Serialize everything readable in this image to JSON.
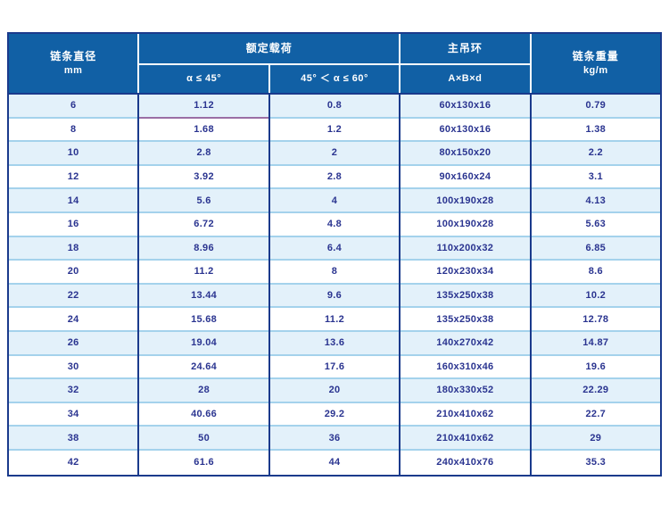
{
  "table": {
    "header": {
      "diameter_title": "链条直径",
      "diameter_unit": "mm",
      "rated_load": "额定载荷",
      "sub_alpha_le_45": "α ≤ 45°",
      "sub_45_lt_alpha_le_60": "45° ＜ α ≤ 60°",
      "main_ring": "主吊环",
      "sub_abd": "A×B×d",
      "weight_title": "链条重量",
      "weight_unit": "kg/m"
    },
    "rows": [
      [
        "6",
        "1.12",
        "0.8",
        "60x130x16",
        "0.79"
      ],
      [
        "8",
        "1.68",
        "1.2",
        "60x130x16",
        "1.38"
      ],
      [
        "10",
        "2.8",
        "2",
        "80x150x20",
        "2.2"
      ],
      [
        "12",
        "3.92",
        "2.8",
        "90x160x24",
        "3.1"
      ],
      [
        "14",
        "5.6",
        "4",
        "100x190x28",
        "4.13"
      ],
      [
        "16",
        "6.72",
        "4.8",
        "100x190x28",
        "5.63"
      ],
      [
        "18",
        "8.96",
        "6.4",
        "110x200x32",
        "6.85"
      ],
      [
        "20",
        "11.2",
        "8",
        "120x230x34",
        "8.6"
      ],
      [
        "22",
        "13.44",
        "9.6",
        "135x250x38",
        "10.2"
      ],
      [
        "24",
        "15.68",
        "11.2",
        "135x250x38",
        "12.78"
      ],
      [
        "26",
        "19.04",
        "13.6",
        "140x270x42",
        "14.87"
      ],
      [
        "30",
        "24.64",
        "17.6",
        "160x310x46",
        "19.6"
      ],
      [
        "32",
        "28",
        "20",
        "180x330x52",
        "22.29"
      ],
      [
        "34",
        "40.66",
        "29.2",
        "210x410x62",
        "22.7"
      ],
      [
        "38",
        "50",
        "36",
        "210x410x62",
        "29"
      ],
      [
        "42",
        "61.6",
        "44",
        "240x410x76",
        "35.3"
      ]
    ]
  },
  "colors": {
    "header_blue": "#1160a5",
    "navy_border": "#1a3a8c",
    "light_row": "#e3f1fa",
    "white_row": "#ffffff",
    "row_separator": "#a4d2ec",
    "cell_text": "#2a3490",
    "header_text": "#ffffff",
    "artifact_purple_line": "#9a6ea4"
  },
  "chart_data": {
    "type": "table",
    "columns": [
      "链条直径 mm",
      "额定载荷 α ≤ 45°",
      "额定载荷 45° ＜ α ≤ 60°",
      "主吊环 A×B×d",
      "链条重量 kg/m"
    ],
    "rows": [
      [
        "6",
        "1.12",
        "0.8",
        "60x130x16",
        "0.79"
      ],
      [
        "8",
        "1.68",
        "1.2",
        "60x130x16",
        "1.38"
      ],
      [
        "10",
        "2.8",
        "2",
        "80x150x20",
        "2.2"
      ],
      [
        "12",
        "3.92",
        "2.8",
        "90x160x24",
        "3.1"
      ],
      [
        "14",
        "5.6",
        "4",
        "100x190x28",
        "4.13"
      ],
      [
        "16",
        "6.72",
        "4.8",
        "100x190x28",
        "5.63"
      ],
      [
        "18",
        "8.96",
        "6.4",
        "110x200x32",
        "6.85"
      ],
      [
        "20",
        "11.2",
        "8",
        "120x230x34",
        "8.6"
      ],
      [
        "22",
        "13.44",
        "9.6",
        "135x250x38",
        "10.2"
      ],
      [
        "24",
        "15.68",
        "11.2",
        "135x250x38",
        "12.78"
      ],
      [
        "26",
        "19.04",
        "13.6",
        "140x270x42",
        "14.87"
      ],
      [
        "30",
        "24.64",
        "17.6",
        "160x310x46",
        "19.6"
      ],
      [
        "32",
        "28",
        "20",
        "180x330x52",
        "22.29"
      ],
      [
        "34",
        "40.66",
        "29.2",
        "210x410x62",
        "22.7"
      ],
      [
        "38",
        "50",
        "36",
        "210x410x62",
        "29"
      ],
      [
        "42",
        "61.6",
        "44",
        "240x410x76",
        "35.3"
      ]
    ]
  }
}
